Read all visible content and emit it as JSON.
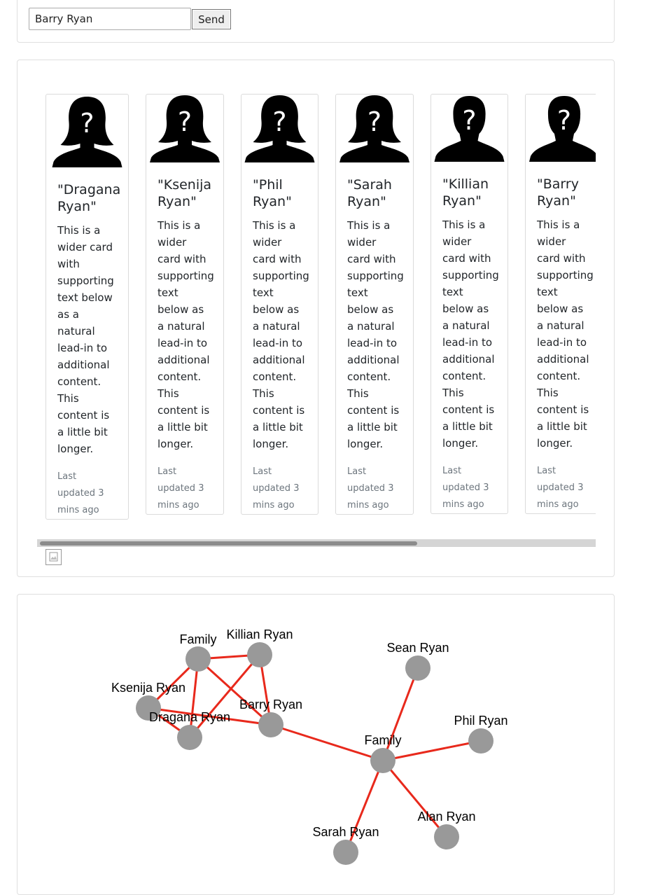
{
  "form": {
    "input_value": "Barry Ryan",
    "send_label": "Send"
  },
  "cards": [
    {
      "title": "\"Dragana Ryan\"",
      "avatar": "female-silhouette-icon",
      "text": "This is a wider card with supporting text below as a natural lead-in to additional content. This content is a little bit longer.",
      "updated": "Last updated 3 mins ago"
    },
    {
      "title": "\"Ksenija Ryan\"",
      "avatar": "female-silhouette-icon",
      "text": "This is a wider card with supporting text below as a natural lead-in to additional content. This content is a little bit longer.",
      "updated": "Last updated 3 mins ago"
    },
    {
      "title": "\"Phil Ryan\"",
      "avatar": "female-silhouette-icon",
      "text": "This is a wider card with supporting text below as a natural lead-in to additional content. This content is a little bit longer.",
      "updated": "Last updated 3 mins ago"
    },
    {
      "title": "\"Sarah Ryan\"",
      "avatar": "female-silhouette-icon",
      "text": "This is a wider card with supporting text below as a natural lead-in to additional content. This content is a little bit longer.",
      "updated": "Last updated 3 mins ago"
    },
    {
      "title": "\"Killian Ryan\"",
      "avatar": "male-silhouette-icon",
      "text": "This is a wider card with supporting text below as a natural lead-in to additional content. This content is a little bit longer.",
      "updated": "Last updated 3 mins ago"
    },
    {
      "title": "\"Barry Ryan\"",
      "avatar": "male-silhouette-icon",
      "text": "This is a wider card with supporting text below as a natural lead-in to additional content. This content is a little bit longer.",
      "updated": "Last updated 3 mins ago"
    }
  ],
  "graph": {
    "node_color": "#999999",
    "edge_color": "#e8291c",
    "nodes": [
      {
        "id": "family1",
        "label": "Family"
      },
      {
        "id": "killian",
        "label": "Killian Ryan"
      },
      {
        "id": "ksenija",
        "label": "Ksenija Ryan"
      },
      {
        "id": "dragana",
        "label": "Dragana Ryan"
      },
      {
        "id": "barry",
        "label": "Barry Ryan"
      },
      {
        "id": "sean",
        "label": "Sean Ryan"
      },
      {
        "id": "phil",
        "label": "Phil Ryan"
      },
      {
        "id": "family2",
        "label": "Family"
      },
      {
        "id": "alan",
        "label": "Alan Ryan"
      },
      {
        "id": "sarah",
        "label": "Sarah Ryan"
      }
    ],
    "edges": [
      [
        "family1",
        "killian"
      ],
      [
        "family1",
        "ksenija"
      ],
      [
        "family1",
        "dragana"
      ],
      [
        "family1",
        "barry"
      ],
      [
        "killian",
        "barry"
      ],
      [
        "killian",
        "dragana"
      ],
      [
        "ksenija",
        "dragana"
      ],
      [
        "ksenija",
        "barry"
      ],
      [
        "barry",
        "family2"
      ],
      [
        "family2",
        "sean"
      ],
      [
        "family2",
        "phil"
      ],
      [
        "family2",
        "alan"
      ],
      [
        "family2",
        "sarah"
      ]
    ]
  }
}
